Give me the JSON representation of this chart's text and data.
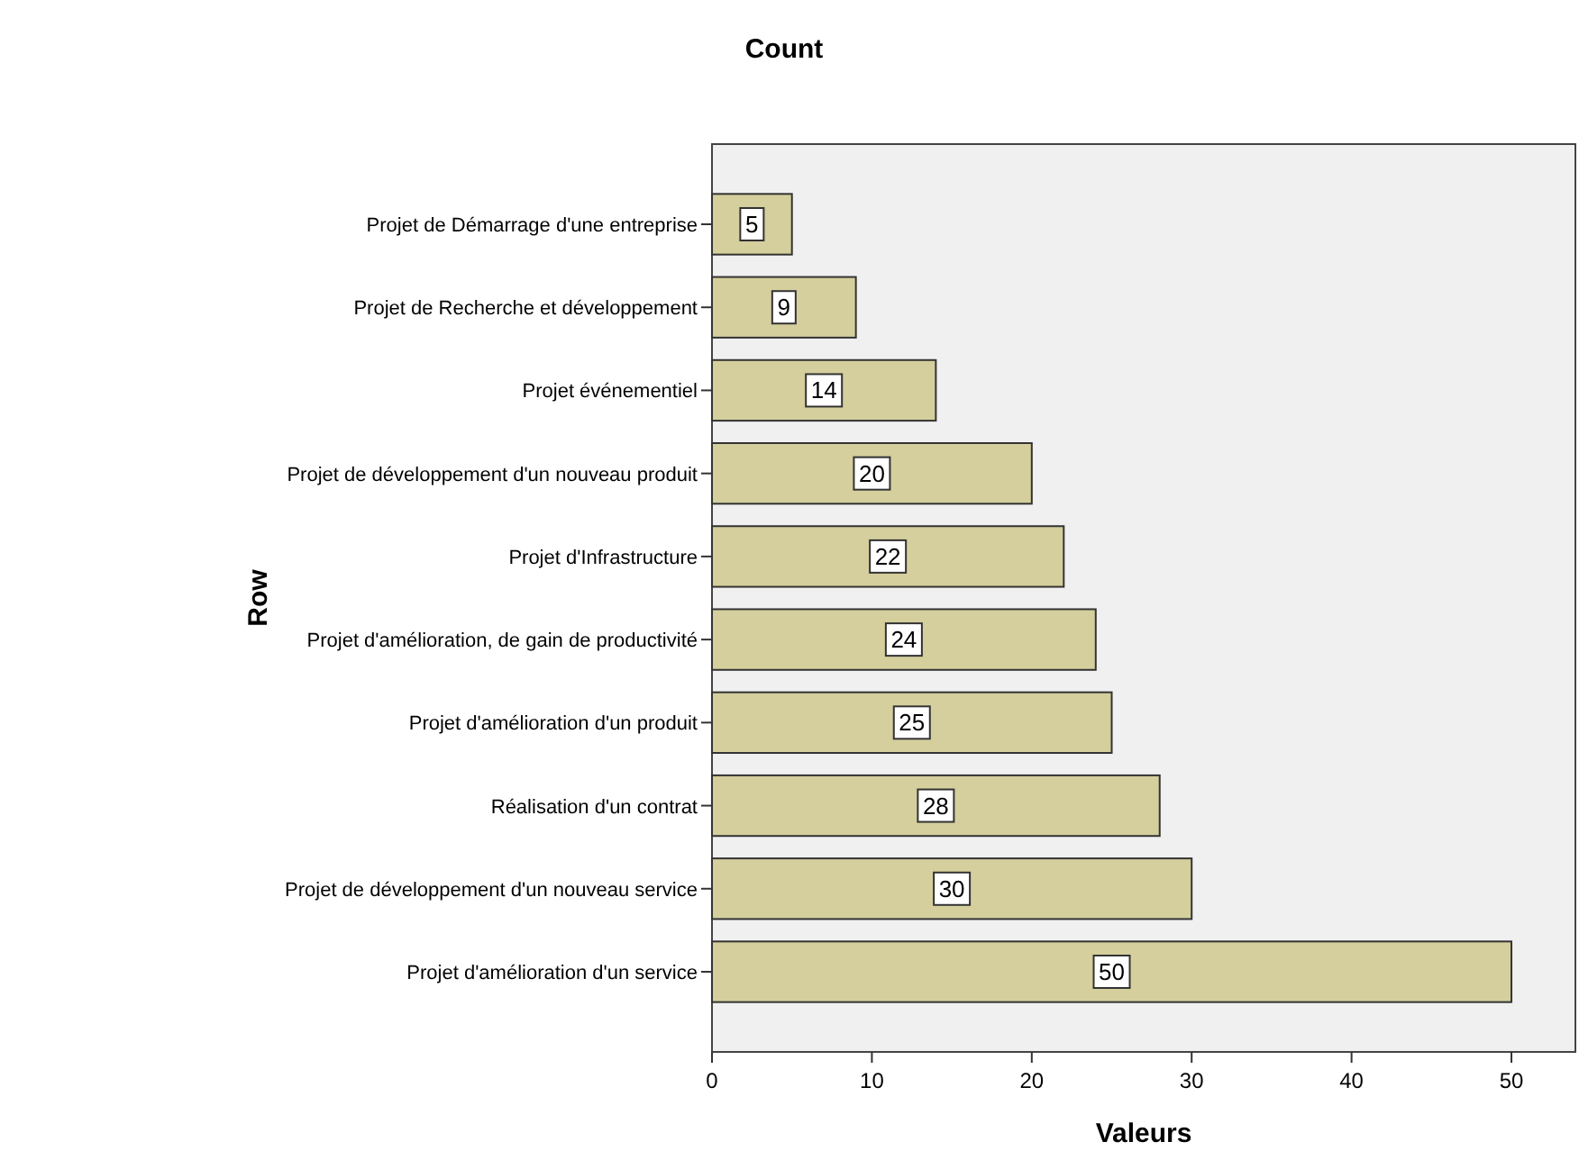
{
  "chart_data": {
    "type": "bar",
    "orientation": "horizontal",
    "title": "Count",
    "xlabel": "Valeurs",
    "ylabel": "Row",
    "categories": [
      "Projet de Démarrage d'une entreprise",
      "Projet de Recherche et développement",
      "Projet événementiel",
      "Projet de développement d'un nouveau produit",
      "Projet d'Infrastructure",
      "Projet d'amélioration, de gain de productivité",
      "Projet d'amélioration d'un produit",
      "Réalisation d'un contrat",
      "Projet de développement d'un nouveau service",
      "Projet d'amélioration d'un service"
    ],
    "values": [
      5,
      9,
      14,
      20,
      22,
      24,
      25,
      28,
      30,
      50
    ],
    "color": "#d4cf9c",
    "xlim": [
      0,
      54
    ],
    "xticks": [
      0,
      10,
      20,
      30,
      40,
      50
    ],
    "data_labels": true
  }
}
